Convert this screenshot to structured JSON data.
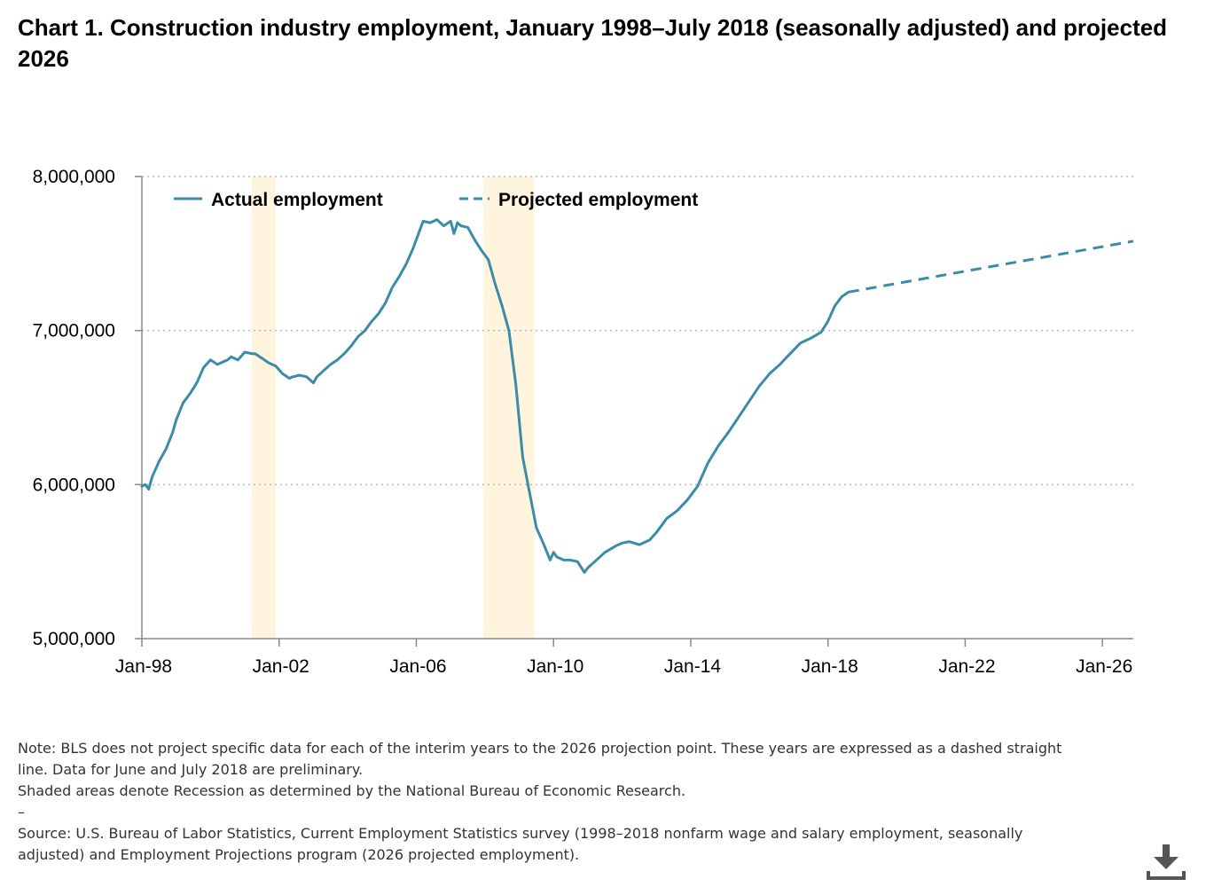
{
  "page": {
    "title": "Chart 1. Construction industry employment, January 1998–July 2018 (seasonally adjusted) and projected 2026",
    "download_label": "Download chart"
  },
  "notes": {
    "line1": "Note: BLS does not project specific data for each of the interim years to the 2026 projection point. These years are expressed as a dashed straight line. Data for June and July 2018 are preliminary.",
    "line2": "Shaded areas denote Recession as determined by the National Bureau of Economic Research.",
    "separator": "–",
    "source": "Source: U.S. Bureau of Labor Statistics, Current Employment Statistics survey (1998–2018 nonfarm wage and salary employment, seasonally adjusted) and Employment Projections program (2026 projected employment)."
  },
  "colors": {
    "line": "#3a8ca8",
    "recession": "#fff5de",
    "grid": "#bbbbbb",
    "axis": "#888888"
  },
  "chart_data": {
    "type": "line",
    "title": "Chart 1. Construction industry employment, January 1998–July 2018 (seasonally adjusted) and projected 2026",
    "xlabel": "",
    "ylabel": "",
    "x_range": [
      1998.0,
      2026.9
    ],
    "ylim": [
      5000000,
      8000000
    ],
    "y_ticks": [
      5000000,
      6000000,
      7000000,
      8000000
    ],
    "y_tick_labels": [
      "5,000,000",
      "6,000,000",
      "7,000,000",
      "8,000,000"
    ],
    "x_ticks": [
      1998,
      2002,
      2006,
      2010,
      2014,
      2018,
      2022,
      2026
    ],
    "x_tick_labels": [
      "Jan-98",
      "Jan-02",
      "Jan-06",
      "Jan-10",
      "Jan-14",
      "Jan-18",
      "Jan-22",
      "Jan-26"
    ],
    "grid": "horizontal dotted",
    "legend": {
      "position": "top-left",
      "items": [
        "Actual employment",
        "Projected employment"
      ]
    },
    "recessions": [
      {
        "label": "2001 recession",
        "start": 2001.2,
        "end": 2001.9
      },
      {
        "label": "2007-2009 recession",
        "start": 2007.95,
        "end": 2009.45
      }
    ],
    "series": [
      {
        "name": "Actual employment",
        "style": "solid",
        "x": [
          1998.0,
          1998.1,
          1998.2,
          1998.3,
          1998.5,
          1998.7,
          1998.9,
          1999.0,
          1999.2,
          1999.4,
          1999.6,
          1999.8,
          2000.0,
          2000.2,
          2000.4,
          2000.5,
          2000.6,
          2000.8,
          2001.0,
          2001.2,
          2001.3,
          2001.5,
          2001.7,
          2001.9,
          2002.1,
          2002.3,
          2002.4,
          2002.6,
          2002.8,
          2003.0,
          2003.1,
          2003.3,
          2003.5,
          2003.7,
          2003.9,
          2004.1,
          2004.3,
          2004.5,
          2004.7,
          2004.9,
          2005.1,
          2005.3,
          2005.5,
          2005.7,
          2005.9,
          2006.1,
          2006.2,
          2006.4,
          2006.6,
          2006.8,
          2007.0,
          2007.1,
          2007.2,
          2007.3,
          2007.5,
          2007.7,
          2007.9,
          2008.1,
          2008.3,
          2008.5,
          2008.7,
          2008.9,
          2009.1,
          2009.3,
          2009.5,
          2009.7,
          2009.9,
          2010.0,
          2010.1,
          2010.3,
          2010.5,
          2010.7,
          2010.9,
          2011.0,
          2011.2,
          2011.5,
          2011.8,
          2012.0,
          2012.2,
          2012.5,
          2012.8,
          2013.0,
          2013.3,
          2013.6,
          2013.9,
          2014.2,
          2014.5,
          2014.8,
          2015.1,
          2015.4,
          2015.7,
          2016.0,
          2016.3,
          2016.6,
          2016.9,
          2017.2,
          2017.5,
          2017.8,
          2018.0,
          2018.2,
          2018.4,
          2018.6
        ],
        "values": [
          5990000,
          6000000,
          5970000,
          6050000,
          6150000,
          6230000,
          6340000,
          6420000,
          6530000,
          6590000,
          6660000,
          6760000,
          6810000,
          6780000,
          6800000,
          6810000,
          6830000,
          6810000,
          6860000,
          6850000,
          6850000,
          6820000,
          6790000,
          6770000,
          6720000,
          6690000,
          6700000,
          6710000,
          6700000,
          6660000,
          6700000,
          6740000,
          6780000,
          6810000,
          6850000,
          6900000,
          6960000,
          7000000,
          7060000,
          7110000,
          7180000,
          7280000,
          7350000,
          7430000,
          7530000,
          7650000,
          7710000,
          7700000,
          7720000,
          7680000,
          7710000,
          7630000,
          7700000,
          7680000,
          7670000,
          7590000,
          7520000,
          7460000,
          7300000,
          7160000,
          7000000,
          6650000,
          6180000,
          5950000,
          5720000,
          5620000,
          5510000,
          5560000,
          5530000,
          5510000,
          5510000,
          5500000,
          5430000,
          5460000,
          5500000,
          5560000,
          5600000,
          5620000,
          5630000,
          5610000,
          5640000,
          5690000,
          5780000,
          5830000,
          5900000,
          5990000,
          6140000,
          6250000,
          6340000,
          6440000,
          6540000,
          6640000,
          6720000,
          6780000,
          6850000,
          6920000,
          6950000,
          6990000,
          7060000,
          7160000,
          7220000,
          7250000
        ]
      },
      {
        "name": "Projected employment",
        "style": "dashed",
        "x": [
          2018.6,
          2026.9
        ],
        "values": [
          7250000,
          7580000
        ]
      }
    ]
  }
}
